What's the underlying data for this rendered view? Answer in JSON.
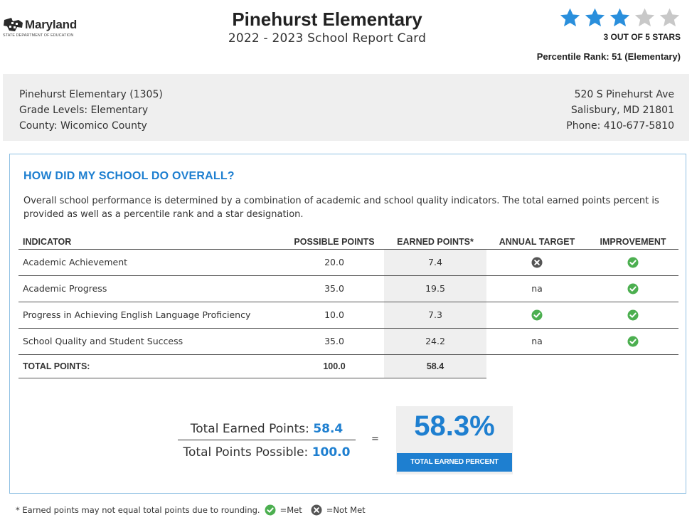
{
  "colors": {
    "accent": "#1e7fd0",
    "star_filled": "#2a8fdc",
    "star_empty": "#c8c8c8",
    "met": "#4caf50",
    "not_met": "#555555"
  },
  "logo": {
    "name": "Maryland",
    "subtitle": "STATE DEPARTMENT OF EDUCATION"
  },
  "header": {
    "school_name": "Pinehurst Elementary",
    "report_title": "2022 - 2023 School Report Card",
    "stars_filled": 3,
    "stars_total": 5,
    "stars_label": "3 OUT OF 5 STARS",
    "percentile": "Percentile Rank: 51 (Elementary)"
  },
  "school_info": {
    "name_id": "Pinehurst Elementary (1305)",
    "grade_levels": "Grade Levels: Elementary",
    "county": "County: Wicomico County",
    "street": "520 S Pinehurst Ave",
    "city_state_zip": "Salisbury, MD 21801",
    "phone": "Phone: 410-677-5810"
  },
  "overall": {
    "title": "HOW DID MY SCHOOL DO OVERALL?",
    "description": "Overall school performance is determined by a combination of academic and school quality indicators. The total earned points percent is provided as well as a percentile rank and a star designation."
  },
  "table": {
    "headers": [
      "INDICATOR",
      "POSSIBLE POINTS",
      "EARNED POINTS*",
      "ANNUAL TARGET",
      "IMPROVEMENT"
    ],
    "rows": [
      {
        "indicator": "Academic Achievement",
        "possible": "20.0",
        "earned": "7.4",
        "annual_target": "not-met-icon",
        "annual_target_text": "",
        "improvement": "met-icon"
      },
      {
        "indicator": "Academic Progress",
        "possible": "35.0",
        "earned": "19.5",
        "annual_target": "",
        "annual_target_text": "na",
        "improvement": "met-icon"
      },
      {
        "indicator": "Progress in Achieving English Language Proficiency",
        "possible": "10.0",
        "earned": "7.3",
        "annual_target": "met-icon",
        "annual_target_text": "",
        "improvement": "met-icon"
      },
      {
        "indicator": "School Quality and Student Success",
        "possible": "35.0",
        "earned": "24.2",
        "annual_target": "",
        "annual_target_text": "na",
        "improvement": "met-icon"
      }
    ],
    "total": {
      "label": "TOTAL POINTS:",
      "possible": "100.0",
      "earned": "58.4"
    }
  },
  "summary": {
    "earned_label": "Total Earned Points:",
    "earned_value": "58.4",
    "possible_label": "Total Points Possible:",
    "possible_value": "100.0",
    "equals": "=",
    "percent": "58.3%",
    "percent_label": "TOTAL EARNED PERCENT"
  },
  "footnote": {
    "text": "* Earned points may not equal total points due to rounding.",
    "met_label": "=Met",
    "not_met_label": "=Not Met"
  }
}
